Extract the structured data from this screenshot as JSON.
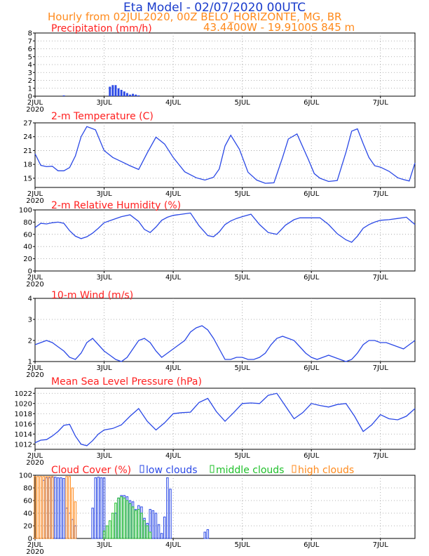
{
  "header": {
    "title": "Eta Model - 02/07/2020 00UTC",
    "line2": "Hourly from 02JUL2020, 00Z  BELO_HORIZONTE, MG, BR",
    "line3": "43.4400W - 19.9100S    845  m"
  },
  "colors": {
    "title": "#1a3ccc",
    "orange": "#ff8a1c",
    "red": "#ff2020",
    "series": "#2a48e6",
    "green": "#1fc02a",
    "black": "#000000",
    "grid": "#9a9a9a"
  },
  "x_axis": {
    "ticks": [
      "2JUL",
      "3JUL",
      "4JUL",
      "5JUL",
      "6JUL",
      "7JUL"
    ],
    "tick_hours": [
      0,
      24,
      48,
      72,
      96,
      120
    ],
    "year": "2020",
    "range_hours": [
      0,
      132
    ]
  },
  "chart_data": [
    {
      "type": "bar",
      "title": "Precipitation (mm/h)",
      "ylim": [
        0,
        8
      ],
      "yticks": [
        "0",
        "1",
        "2",
        "3",
        "4",
        "5",
        "6",
        "7",
        "8"
      ],
      "grid": true,
      "x_hours": [
        10,
        26,
        27,
        28,
        29,
        30,
        31,
        32,
        33,
        34,
        35,
        36
      ],
      "values": [
        0.1,
        1.2,
        1.4,
        1.4,
        1.0,
        0.8,
        0.6,
        0.4,
        0.2,
        0.3,
        0.2,
        0.1
      ]
    },
    {
      "type": "line",
      "title": "2-m Temperature (C)",
      "ylim": [
        13,
        27
      ],
      "yticks": [
        "15",
        "18",
        "21",
        "24",
        "27"
      ],
      "grid": true,
      "x": [
        0,
        2,
        4,
        6,
        8,
        10,
        12,
        14,
        16,
        18,
        21,
        24,
        27,
        30,
        33,
        36,
        39,
        42,
        45,
        48,
        52,
        56,
        59,
        62,
        64,
        66,
        68,
        71,
        74,
        77,
        80,
        83,
        86,
        88,
        91,
        95,
        97,
        99,
        102,
        105,
        108,
        110,
        112,
        114,
        116,
        118,
        120,
        123,
        126,
        128,
        130,
        132
      ],
      "y": [
        20.3,
        17.8,
        17.5,
        17.6,
        16.6,
        16.6,
        17.3,
        19.8,
        24.0,
        26.2,
        25.5,
        21.0,
        19.5,
        18.6,
        17.7,
        16.9,
        20.5,
        23.9,
        22.4,
        19.5,
        16.4,
        15.1,
        14.6,
        15.2,
        17.0,
        22.0,
        24.3,
        21.3,
        16.3,
        14.6,
        13.9,
        14.0,
        19.5,
        23.5,
        24.6,
        19.0,
        16.0,
        15.0,
        14.3,
        14.5,
        20.6,
        25.2,
        25.7,
        22.5,
        19.5,
        17.7,
        17.4,
        16.5,
        15.1,
        14.7,
        14.4,
        18.3
      ]
    },
    {
      "type": "line",
      "title": "2-m Relative Humidity (%)",
      "ylim": [
        0,
        100
      ],
      "yticks": [
        "0",
        "20",
        "40",
        "60",
        "80",
        "100"
      ],
      "grid": true,
      "x": [
        0,
        2,
        4,
        6,
        8,
        10,
        12,
        14,
        16,
        18,
        20,
        22,
        24,
        27,
        30,
        33,
        36,
        38,
        40,
        42,
        44,
        46,
        48,
        51,
        54,
        57,
        60,
        62,
        64,
        66,
        68,
        70,
        72,
        75,
        78,
        81,
        84,
        87,
        90,
        92,
        94,
        96,
        99,
        102,
        105,
        108,
        110,
        112,
        114,
        116,
        118,
        120,
        123,
        126,
        129,
        132
      ],
      "y": [
        71,
        78,
        77,
        79,
        80,
        78,
        66,
        57,
        53,
        56,
        62,
        70,
        79,
        84,
        89,
        92,
        81,
        68,
        63,
        72,
        83,
        88,
        91,
        93,
        95,
        74,
        58,
        56,
        64,
        76,
        82,
        86,
        89,
        93,
        76,
        63,
        60,
        75,
        84,
        87,
        87,
        87,
        87,
        76,
        61,
        51,
        47,
        57,
        70,
        76,
        80,
        83,
        84,
        86,
        88,
        76
      ]
    },
    {
      "type": "line",
      "title": "10-m Wind (m/s)",
      "ylim": [
        1,
        4
      ],
      "yticks": [
        "1",
        "2",
        "3",
        "4"
      ],
      "grid": true,
      "x": [
        0,
        2,
        4,
        6,
        8,
        10,
        12,
        14,
        16,
        18,
        20,
        22,
        24,
        26,
        28,
        30,
        32,
        34,
        36,
        38,
        40,
        42,
        44,
        46,
        48,
        50,
        52,
        54,
        56,
        58,
        60,
        62,
        64,
        66,
        68,
        70,
        72,
        74,
        76,
        78,
        80,
        82,
        84,
        86,
        88,
        90,
        92,
        94,
        96,
        98,
        100,
        102,
        104,
        106,
        108,
        110,
        112,
        114,
        116,
        118,
        120,
        122,
        124,
        126,
        128,
        130,
        132
      ],
      "y": [
        1.8,
        1.9,
        2.0,
        1.9,
        1.7,
        1.5,
        1.2,
        1.1,
        1.4,
        1.9,
        2.1,
        1.8,
        1.5,
        1.3,
        1.1,
        1.0,
        1.2,
        1.6,
        2.0,
        2.1,
        1.9,
        1.5,
        1.2,
        1.4,
        1.6,
        1.8,
        2.0,
        2.4,
        2.6,
        2.7,
        2.5,
        2.1,
        1.6,
        1.1,
        1.1,
        1.2,
        1.2,
        1.1,
        1.1,
        1.2,
        1.4,
        1.8,
        2.1,
        2.2,
        2.1,
        2.0,
        1.7,
        1.4,
        1.2,
        1.1,
        1.2,
        1.3,
        1.2,
        1.1,
        1.0,
        1.1,
        1.4,
        1.8,
        2.0,
        2.0,
        1.9,
        1.9,
        1.8,
        1.7,
        1.6,
        1.8,
        2.0
      ]
    },
    {
      "type": "line",
      "title": "Mean Sea Level Pressure (hPa)",
      "ylim": [
        1011,
        1023
      ],
      "yticks": [
        "1012",
        "1014",
        "1016",
        "1018",
        "1020",
        "1022"
      ],
      "grid": true,
      "x": [
        0,
        2,
        4,
        6,
        8,
        10,
        12,
        14,
        16,
        18,
        20,
        22,
        24,
        27,
        30,
        33,
        36,
        39,
        42,
        45,
        48,
        51,
        54,
        57,
        60,
        63,
        66,
        69,
        72,
        75,
        78,
        81,
        84,
        87,
        90,
        93,
        96,
        99,
        102,
        105,
        108,
        111,
        114,
        117,
        120,
        123,
        126,
        129,
        132
      ],
      "y": [
        1012.3,
        1012.8,
        1012.9,
        1013.6,
        1014.5,
        1015.7,
        1015.9,
        1013.6,
        1012.0,
        1011.7,
        1012.7,
        1014.0,
        1014.8,
        1015.1,
        1015.8,
        1017.5,
        1019.0,
        1016.5,
        1014.8,
        1016.2,
        1018.0,
        1018.2,
        1018.3,
        1020.2,
        1021.0,
        1018.4,
        1016.5,
        1018.2,
        1020.0,
        1020.1,
        1020.0,
        1021.6,
        1022.0,
        1019.5,
        1017.0,
        1018.2,
        1020.0,
        1019.6,
        1019.3,
        1019.8,
        1020.0,
        1017.5,
        1014.5,
        1015.8,
        1017.8,
        1017.0,
        1016.8,
        1017.5,
        1019.0
      ]
    },
    {
      "type": "bar",
      "title": "Cloud Cover (%)",
      "ylim": [
        0,
        100
      ],
      "yticks": [
        "0",
        "20",
        "40",
        "60",
        "80",
        "100"
      ],
      "grid": true,
      "legend": {
        "low": "low clouds",
        "middle": "middle clouds",
        "high": "high clouds",
        "placement": "top"
      },
      "series": [
        {
          "name": "low clouds",
          "x_hours": [
            3,
            4,
            5,
            6,
            7,
            8,
            9,
            10,
            11,
            12,
            13,
            14,
            20,
            21,
            22,
            23,
            24,
            28,
            29,
            30,
            31,
            32,
            33,
            34,
            35,
            36,
            37,
            38,
            39,
            40,
            41,
            42,
            43,
            44,
            45,
            46,
            47,
            59,
            60
          ],
          "values": [
            92,
            96,
            96,
            97,
            97,
            96,
            96,
            95,
            48,
            40,
            30,
            20,
            48,
            96,
            97,
            96,
            96,
            40,
            64,
            68,
            68,
            66,
            60,
            58,
            46,
            52,
            50,
            32,
            24,
            46,
            44,
            40,
            22,
            8,
            34,
            96,
            78,
            10,
            14
          ]
        },
        {
          "name": "middle clouds",
          "x_hours": [
            24,
            25,
            26,
            27,
            28,
            29,
            30,
            31,
            32,
            33,
            34,
            35,
            36,
            37,
            38,
            39,
            40
          ],
          "values": [
            12,
            20,
            28,
            40,
            56,
            64,
            66,
            64,
            60,
            55,
            50,
            44,
            46,
            40,
            28,
            20,
            10
          ]
        },
        {
          "name": "high clouds",
          "x_hours": [
            0,
            1,
            2,
            3,
            4,
            5,
            6,
            11,
            12,
            13,
            14
          ],
          "values": [
            98,
            98,
            98,
            98,
            98,
            98,
            98,
            98,
            98,
            80,
            58
          ]
        }
      ]
    }
  ]
}
